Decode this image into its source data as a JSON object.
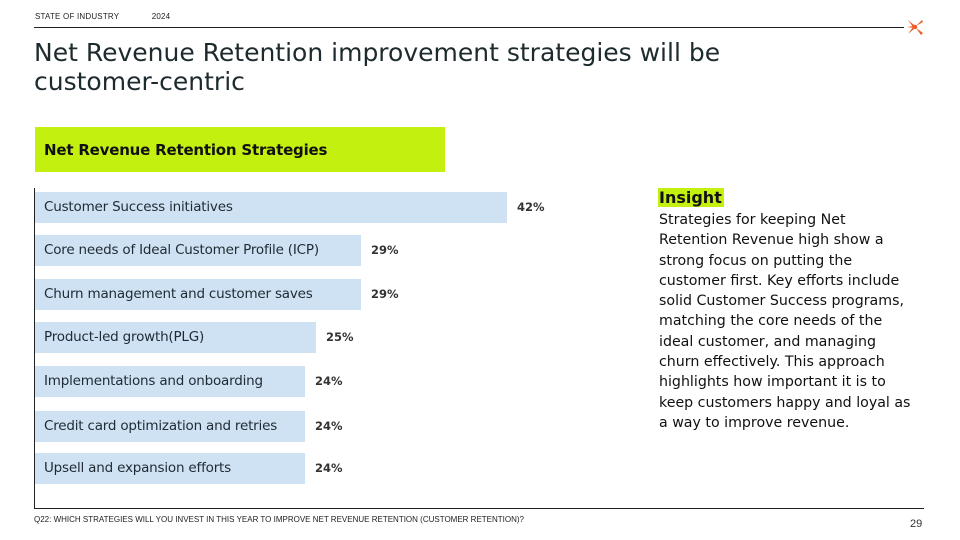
{
  "header": {
    "section": "STATE OF INDUSTRY",
    "year": "2024"
  },
  "title": "Net Revenue Retention improvement strategies will be customer-centric",
  "colors": {
    "accent_lime": "#c3f00e",
    "bar_fill": "#cfe2f3",
    "logo_orange": "#f05a28"
  },
  "logo_icon": "star-burst-icon",
  "chart_data": {
    "type": "bar",
    "orientation": "horizontal",
    "title": "Net Revenue Retention Strategies",
    "unit": "%",
    "xlim": [
      0,
      42
    ],
    "grid": false,
    "categories": [
      "Customer Success initiatives",
      "Core needs of Ideal Customer Profile (ICP)",
      "Churn management and customer saves",
      "Product-led growth(PLG)",
      "Implementations and onboarding",
      "Credit card optimization and retries",
      "Upsell and expansion efforts"
    ],
    "values": [
      42,
      29,
      29,
      25,
      24,
      24,
      24
    ],
    "value_labels": [
      "42%",
      "29%",
      "29%",
      "25%",
      "24%",
      "24%",
      "24%"
    ]
  },
  "insight": {
    "title": "Insight",
    "body": "Strategies for keeping Net Retention Revenue high show a strong focus on putting the customer first. Key efforts include solid Customer Success programs, matching the core needs  of the ideal customer, and managing churn effectively. This approach highlights how important it is to keep customers happy and loyal as a way to improve revenue."
  },
  "footer": {
    "question": "Q22: WHICH STRATEGIES WILL YOU INVEST IN THIS YEAR TO IMPROVE NET REVENUE RETENTION (CUSTOMER RETENTION)?",
    "page": "29"
  }
}
